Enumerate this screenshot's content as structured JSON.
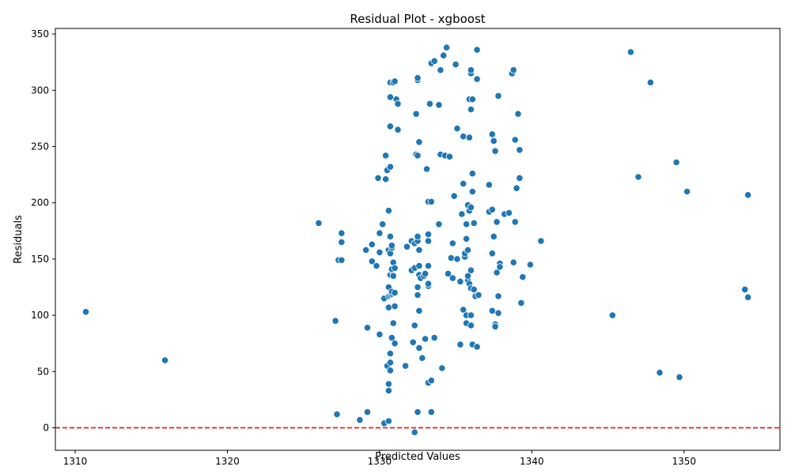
{
  "chart_data": {
    "type": "scatter",
    "title": "Residual Plot - xgboost",
    "xlabel": "Predicted Values",
    "ylabel": "Residuals",
    "xlim": [
      1308.7,
      1356.3
    ],
    "ylim": [
      -20,
      355
    ],
    "xticks": [
      1310,
      1320,
      1330,
      1340,
      1350
    ],
    "yticks": [
      0,
      50,
      100,
      150,
      200,
      250,
      300,
      350
    ],
    "grid": false,
    "reference_line": {
      "y": 0,
      "color": "#d62728",
      "style": "dashed"
    },
    "point_color": "#1f77b4",
    "points": [
      [
        1310.7,
        103
      ],
      [
        1315.9,
        60
      ],
      [
        1326.0,
        182
      ],
      [
        1327.1,
        95
      ],
      [
        1327.2,
        12
      ],
      [
        1327.3,
        149
      ],
      [
        1327.5,
        173
      ],
      [
        1327.5,
        165
      ],
      [
        1327.5,
        149
      ],
      [
        1328.7,
        7
      ],
      [
        1329.2,
        14
      ],
      [
        1329.2,
        89
      ],
      [
        1329.1,
        158
      ],
      [
        1329.5,
        148
      ],
      [
        1329.5,
        163
      ],
      [
        1329.8,
        144
      ],
      [
        1329.9,
        222
      ],
      [
        1330.0,
        83
      ],
      [
        1330.0,
        156
      ],
      [
        1330.0,
        173
      ],
      [
        1330.2,
        181
      ],
      [
        1330.3,
        4
      ],
      [
        1330.3,
        115
      ],
      [
        1330.4,
        221
      ],
      [
        1330.4,
        242
      ],
      [
        1330.5,
        55
      ],
      [
        1330.5,
        229
      ],
      [
        1330.6,
        6
      ],
      [
        1330.6,
        33
      ],
      [
        1330.6,
        39
      ],
      [
        1330.6,
        107
      ],
      [
        1330.6,
        117
      ],
      [
        1330.6,
        125
      ],
      [
        1330.6,
        158
      ],
      [
        1330.6,
        193
      ],
      [
        1330.7,
        51
      ],
      [
        1330.7,
        58
      ],
      [
        1330.7,
        66
      ],
      [
        1330.7,
        118
      ],
      [
        1330.7,
        136
      ],
      [
        1330.7,
        155
      ],
      [
        1330.7,
        170
      ],
      [
        1330.7,
        232
      ],
      [
        1330.7,
        268
      ],
      [
        1330.7,
        294
      ],
      [
        1330.7,
        307
      ],
      [
        1330.8,
        80
      ],
      [
        1330.8,
        119
      ],
      [
        1330.8,
        121
      ],
      [
        1330.8,
        140
      ],
      [
        1330.8,
        141
      ],
      [
        1330.8,
        160
      ],
      [
        1330.8,
        162
      ],
      [
        1330.9,
        93
      ],
      [
        1330.9,
        135
      ],
      [
        1330.9,
        147
      ],
      [
        1330.9,
        307
      ],
      [
        1331.0,
        75
      ],
      [
        1331.0,
        108
      ],
      [
        1331.0,
        120
      ],
      [
        1331.0,
        142
      ],
      [
        1331.0,
        308
      ],
      [
        1331.1,
        292
      ],
      [
        1331.2,
        288
      ],
      [
        1331.2,
        265
      ],
      [
        1331.7,
        55
      ],
      [
        1331.8,
        161
      ],
      [
        1332.1,
        166
      ],
      [
        1332.1,
        140
      ],
      [
        1332.2,
        76
      ],
      [
        1332.3,
        91
      ],
      [
        1332.3,
        -4
      ],
      [
        1332.3,
        164
      ],
      [
        1332.3,
        142
      ],
      [
        1332.4,
        243
      ],
      [
        1332.4,
        279
      ],
      [
        1332.5,
        14
      ],
      [
        1332.5,
        118
      ],
      [
        1332.5,
        125
      ],
      [
        1332.5,
        166
      ],
      [
        1332.5,
        170
      ],
      [
        1332.5,
        242
      ],
      [
        1332.5,
        309
      ],
      [
        1332.5,
        311
      ],
      [
        1332.6,
        104
      ],
      [
        1332.6,
        136
      ],
      [
        1332.6,
        144
      ],
      [
        1332.6,
        158
      ],
      [
        1332.6,
        254
      ],
      [
        1332.6,
        71
      ],
      [
        1332.7,
        133
      ],
      [
        1332.8,
        62
      ],
      [
        1332.9,
        135
      ],
      [
        1333.0,
        79
      ],
      [
        1333.0,
        137
      ],
      [
        1333.1,
        230
      ],
      [
        1333.2,
        126
      ],
      [
        1333.2,
        40
      ],
      [
        1333.2,
        128
      ],
      [
        1333.2,
        144
      ],
      [
        1333.2,
        166
      ],
      [
        1333.2,
        172
      ],
      [
        1333.2,
        201
      ],
      [
        1333.3,
        288
      ],
      [
        1333.4,
        201
      ],
      [
        1333.4,
        42
      ],
      [
        1333.4,
        14
      ],
      [
        1333.6,
        80
      ],
      [
        1333.4,
        324
      ],
      [
        1333.6,
        326
      ],
      [
        1333.9,
        181
      ],
      [
        1333.9,
        287
      ],
      [
        1334.0,
        318
      ],
      [
        1334.0,
        243
      ],
      [
        1334.1,
        53
      ],
      [
        1334.2,
        331
      ],
      [
        1334.3,
        242
      ],
      [
        1334.4,
        338
      ],
      [
        1334.5,
        137
      ],
      [
        1334.6,
        241
      ],
      [
        1334.7,
        151
      ],
      [
        1334.8,
        133
      ],
      [
        1334.8,
        164
      ],
      [
        1334.9,
        206
      ],
      [
        1335.0,
        323
      ],
      [
        1335.1,
        150
      ],
      [
        1335.1,
        266
      ],
      [
        1335.3,
        74
      ],
      [
        1335.3,
        130
      ],
      [
        1335.4,
        190
      ],
      [
        1335.5,
        105
      ],
      [
        1335.5,
        259
      ],
      [
        1335.5,
        217
      ],
      [
        1335.6,
        152
      ],
      [
        1335.6,
        155
      ],
      [
        1335.7,
        93
      ],
      [
        1335.7,
        100
      ],
      [
        1335.7,
        168
      ],
      [
        1335.7,
        181
      ],
      [
        1335.8,
        131
      ],
      [
        1335.8,
        135
      ],
      [
        1335.8,
        158
      ],
      [
        1335.8,
        198
      ],
      [
        1335.9,
        128
      ],
      [
        1335.9,
        258
      ],
      [
        1335.9,
        292
      ],
      [
        1335.9,
        193
      ],
      [
        1336.0,
        91
      ],
      [
        1336.0,
        100
      ],
      [
        1336.0,
        124
      ],
      [
        1336.0,
        140
      ],
      [
        1336.0,
        196
      ],
      [
        1336.0,
        283
      ],
      [
        1336.0,
        315
      ],
      [
        1336.0,
        318
      ],
      [
        1336.1,
        74
      ],
      [
        1336.1,
        210
      ],
      [
        1336.1,
        226
      ],
      [
        1336.1,
        292
      ],
      [
        1336.2,
        182
      ],
      [
        1336.2,
        123
      ],
      [
        1336.3,
        117
      ],
      [
        1336.4,
        310
      ],
      [
        1336.4,
        336
      ],
      [
        1336.4,
        72
      ],
      [
        1336.5,
        118
      ],
      [
        1337.2,
        192
      ],
      [
        1337.2,
        216
      ],
      [
        1337.4,
        155
      ],
      [
        1337.4,
        194
      ],
      [
        1337.4,
        261
      ],
      [
        1337.4,
        104
      ],
      [
        1337.5,
        170
      ],
      [
        1337.5,
        255
      ],
      [
        1337.6,
        246
      ],
      [
        1337.6,
        92
      ],
      [
        1337.6,
        90
      ],
      [
        1337.7,
        138
      ],
      [
        1337.7,
        183
      ],
      [
        1337.8,
        102
      ],
      [
        1337.8,
        117
      ],
      [
        1337.8,
        295
      ],
      [
        1337.9,
        146
      ],
      [
        1337.9,
        143
      ],
      [
        1338.2,
        190
      ],
      [
        1338.5,
        191
      ],
      [
        1338.7,
        315
      ],
      [
        1338.8,
        318
      ],
      [
        1338.8,
        147
      ],
      [
        1338.9,
        256
      ],
      [
        1338.9,
        183
      ],
      [
        1339.0,
        213
      ],
      [
        1339.1,
        279
      ],
      [
        1339.2,
        222
      ],
      [
        1339.2,
        247
      ],
      [
        1339.3,
        111
      ],
      [
        1339.4,
        134
      ],
      [
        1339.9,
        145
      ],
      [
        1340.6,
        166
      ],
      [
        1345.3,
        100
      ],
      [
        1346.5,
        334
      ],
      [
        1347.0,
        223
      ],
      [
        1347.8,
        307
      ],
      [
        1348.4,
        49
      ],
      [
        1349.5,
        236
      ],
      [
        1349.7,
        45
      ],
      [
        1350.2,
        210
      ],
      [
        1354.0,
        123
      ],
      [
        1354.2,
        116
      ],
      [
        1354.2,
        207
      ]
    ]
  }
}
